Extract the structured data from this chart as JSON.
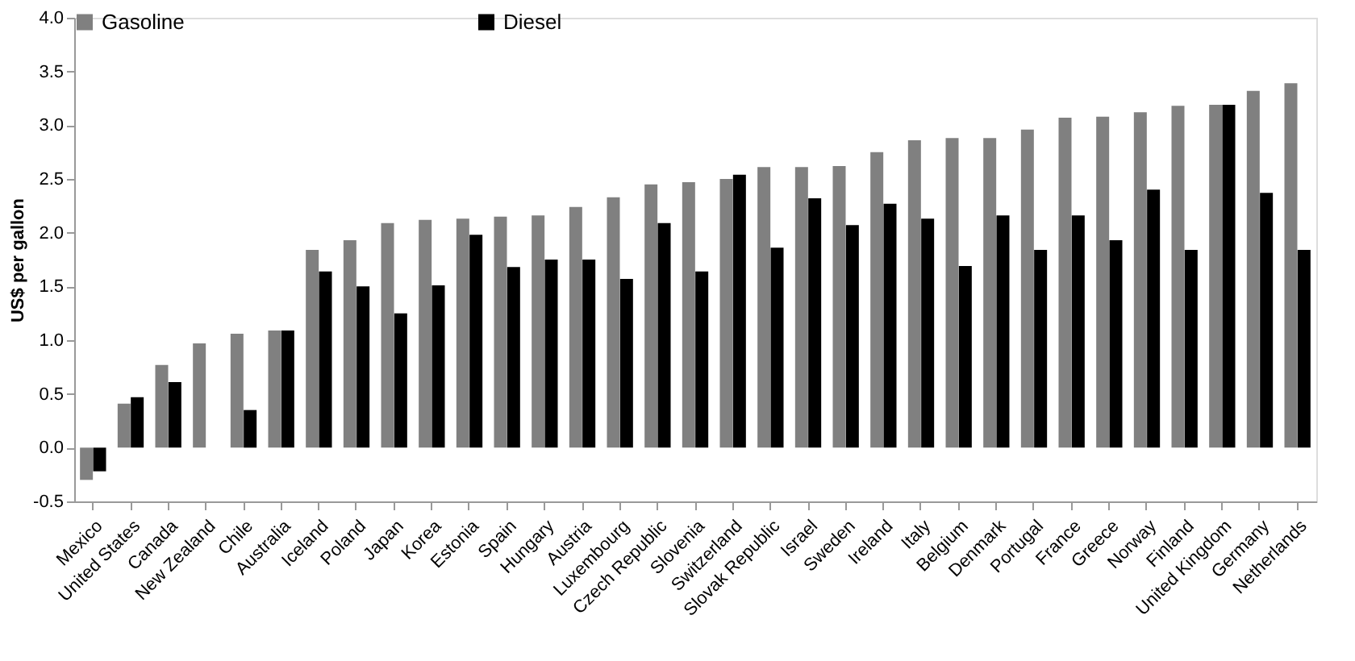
{
  "chart_data": {
    "type": "bar",
    "ylabel": "US$ per gallon",
    "categories": [
      "Mexico",
      "United States",
      "Canada",
      "New Zealand",
      "Chile",
      "Australia",
      "Iceland",
      "Poland",
      "Japan",
      "Korea",
      "Estonia",
      "Spain",
      "Hungary",
      "Austria",
      "Luxembourg",
      "Czech Republic",
      "Slovenia",
      "Switzerland",
      "Slovak Republic",
      "Israel",
      "Sweden",
      "Ireland",
      "Italy",
      "Belgium",
      "Denmark",
      "Portugal",
      "France",
      "Greece",
      "Norway",
      "Finland",
      "United Kingdom",
      "Germany",
      "Netherlands"
    ],
    "series": [
      {
        "name": "Gasoline",
        "color": "#808080",
        "values": [
          -0.3,
          0.41,
          0.77,
          0.97,
          1.06,
          1.09,
          1.84,
          1.93,
          2.09,
          2.12,
          2.13,
          2.15,
          2.16,
          2.24,
          2.33,
          2.45,
          2.47,
          2.5,
          2.61,
          2.61,
          2.62,
          2.75,
          2.86,
          2.88,
          2.88,
          2.96,
          3.07,
          3.08,
          3.12,
          3.18,
          3.19,
          3.32,
          3.39
        ]
      },
      {
        "name": "Diesel",
        "color": "#000000",
        "values": [
          -0.22,
          0.47,
          0.61,
          null,
          0.35,
          1.09,
          1.64,
          1.5,
          1.25,
          1.51,
          1.98,
          1.68,
          1.75,
          1.75,
          1.57,
          2.09,
          1.64,
          2.54,
          1.86,
          2.32,
          2.07,
          2.27,
          2.13,
          1.69,
          2.16,
          1.84,
          2.16,
          1.93,
          2.4,
          1.84,
          3.19,
          2.37,
          1.84
        ]
      }
    ],
    "ylim": [
      -0.5,
      4.0
    ],
    "yticks": [
      {
        "value": -0.5,
        "label": "-0.5"
      },
      {
        "value": 0,
        "label": "0.0"
      },
      {
        "value": 0.5,
        "label": "0.5"
      },
      {
        "value": 1,
        "label": "1.0"
      },
      {
        "value": 1.5,
        "label": "1.5"
      },
      {
        "value": 2,
        "label": "2.0"
      },
      {
        "value": 2.5,
        "label": "2.5"
      },
      {
        "value": 3,
        "label": "3.0"
      },
      {
        "value": 3.5,
        "label": "3.5"
      },
      {
        "value": 4,
        "label": "4.0"
      }
    ],
    "grid": false,
    "legend": "top"
  }
}
